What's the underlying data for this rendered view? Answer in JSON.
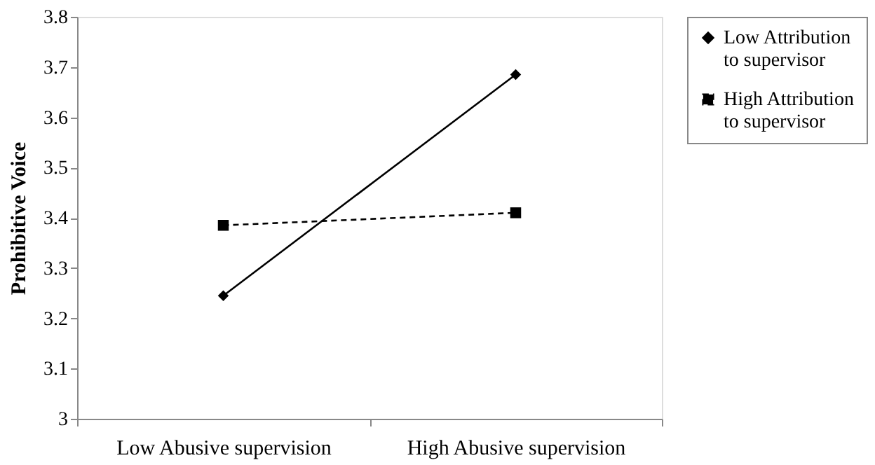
{
  "chart_data": {
    "type": "line",
    "ylabel": "Prohibitive Voice",
    "categories": [
      "Low Abusive supervision",
      "High Abusive supervision"
    ],
    "series": [
      {
        "name": "Low Attribution to supervisor",
        "color": "#000000",
        "values": [
          3.245,
          3.685
        ],
        "marker": "diamond",
        "line_style": "solid"
      },
      {
        "name": "High Attribution to supervisor",
        "color": "#000000",
        "values": [
          3.385,
          3.41
        ],
        "marker": "square",
        "line_style": "dashed"
      }
    ],
    "ylim": [
      3,
      3.8
    ],
    "yticks": [
      3,
      3.1,
      3.2,
      3.3,
      3.4,
      3.5,
      3.6,
      3.7,
      3.8
    ],
    "grid": false,
    "legend": "right"
  }
}
